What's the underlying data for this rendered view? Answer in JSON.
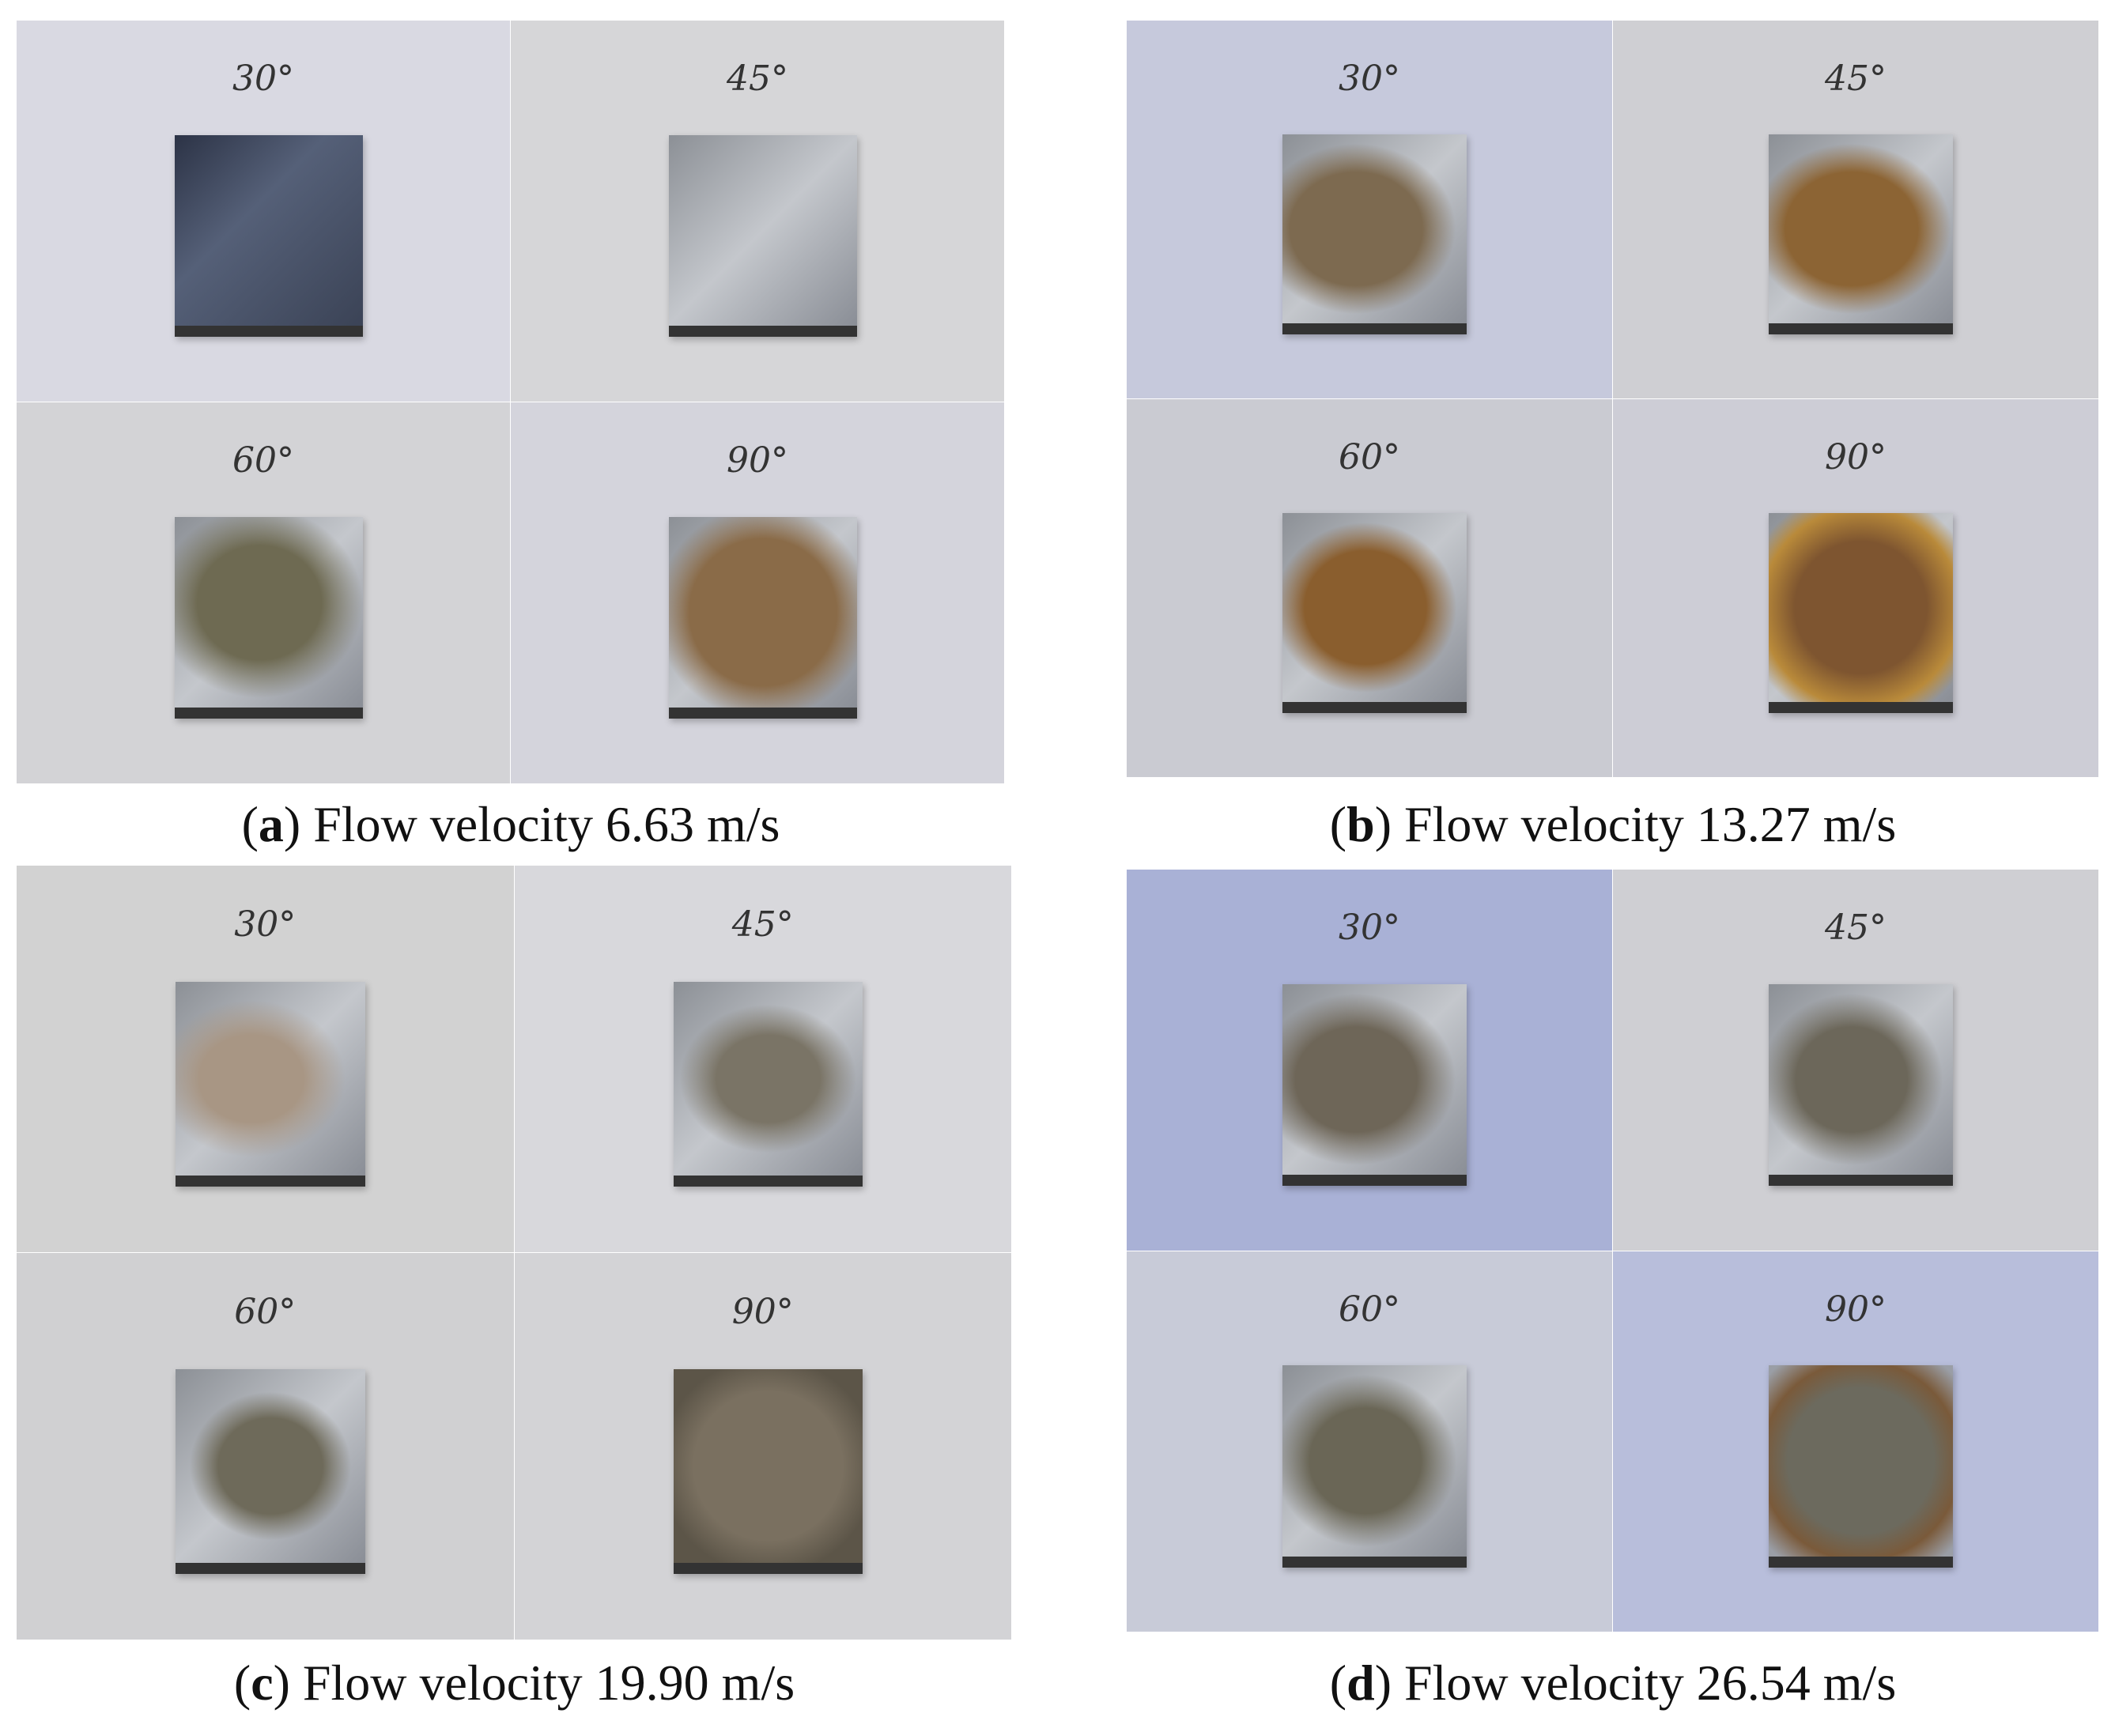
{
  "panels": [
    {
      "caption_parts": [
        "(",
        "a",
        ") Flow velocity 6.63 m/s"
      ],
      "photos": [
        {
          "angle": "30°"
        },
        {
          "angle": "45°"
        },
        {
          "angle": "60°"
        },
        {
          "angle": "90°"
        }
      ]
    },
    {
      "caption_parts": [
        "(",
        "b",
        ") Flow velocity 13.27 m/s"
      ],
      "photos": [
        {
          "angle": "30°"
        },
        {
          "angle": "45°"
        },
        {
          "angle": "60°"
        },
        {
          "angle": "90°"
        }
      ]
    },
    {
      "caption_parts": [
        "(",
        "c",
        ") Flow velocity 19.90 m/s"
      ],
      "photos": [
        {
          "angle": "30°"
        },
        {
          "angle": "45°"
        },
        {
          "angle": "60°"
        },
        {
          "angle": "90°"
        }
      ]
    },
    {
      "caption_parts": [
        "(",
        "d",
        ") Flow velocity 26.54 m/s"
      ],
      "photos": [
        {
          "angle": "30°"
        },
        {
          "angle": "45°"
        },
        {
          "angle": "60°"
        },
        {
          "angle": "90°"
        }
      ]
    }
  ]
}
